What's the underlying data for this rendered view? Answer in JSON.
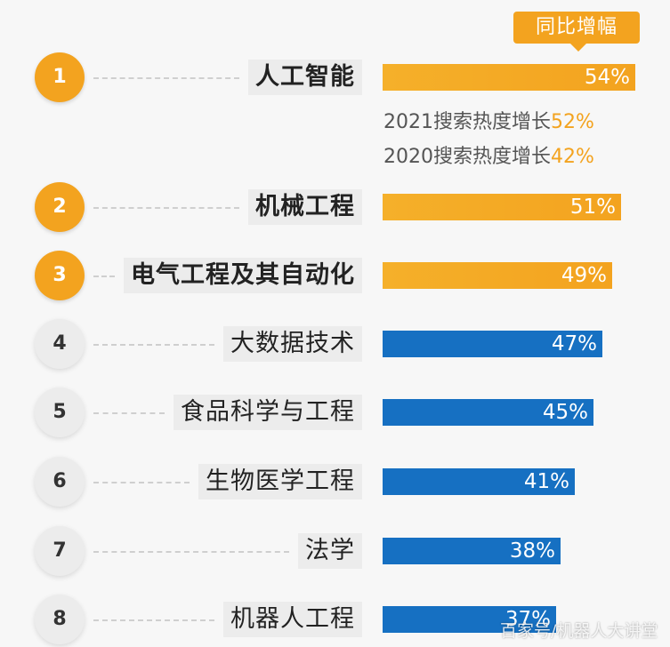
{
  "legend_label": "同比增幅",
  "watermark": "百家号/机器人大讲堂",
  "colors": {
    "top": "#f3a31f",
    "other": "#1670c2"
  },
  "chart_data": {
    "type": "bar",
    "orientation": "horizontal",
    "title": "",
    "categories": [
      "人工智能",
      "机械工程",
      "电气工程及其自动化",
      "大数据技术",
      "食品科学与工程",
      "生物医学工程",
      "法学",
      "机器人工程"
    ],
    "ranks": [
      "1",
      "2",
      "3",
      "4",
      "5",
      "6",
      "7",
      "8"
    ],
    "series": [
      {
        "name": "同比增幅",
        "values": [
          54,
          51,
          49,
          47,
          45,
          41,
          38,
          37
        ]
      }
    ],
    "value_labels": [
      "54%",
      "51%",
      "49%",
      "47%",
      "45%",
      "41%",
      "38%",
      "37%"
    ],
    "highlight_top": 3,
    "xlim": [
      0,
      100
    ],
    "annotations": [
      {
        "text": "2021搜索热度增长",
        "value": "52%"
      },
      {
        "text": "2020搜索热度增长",
        "value": "42%"
      }
    ]
  }
}
